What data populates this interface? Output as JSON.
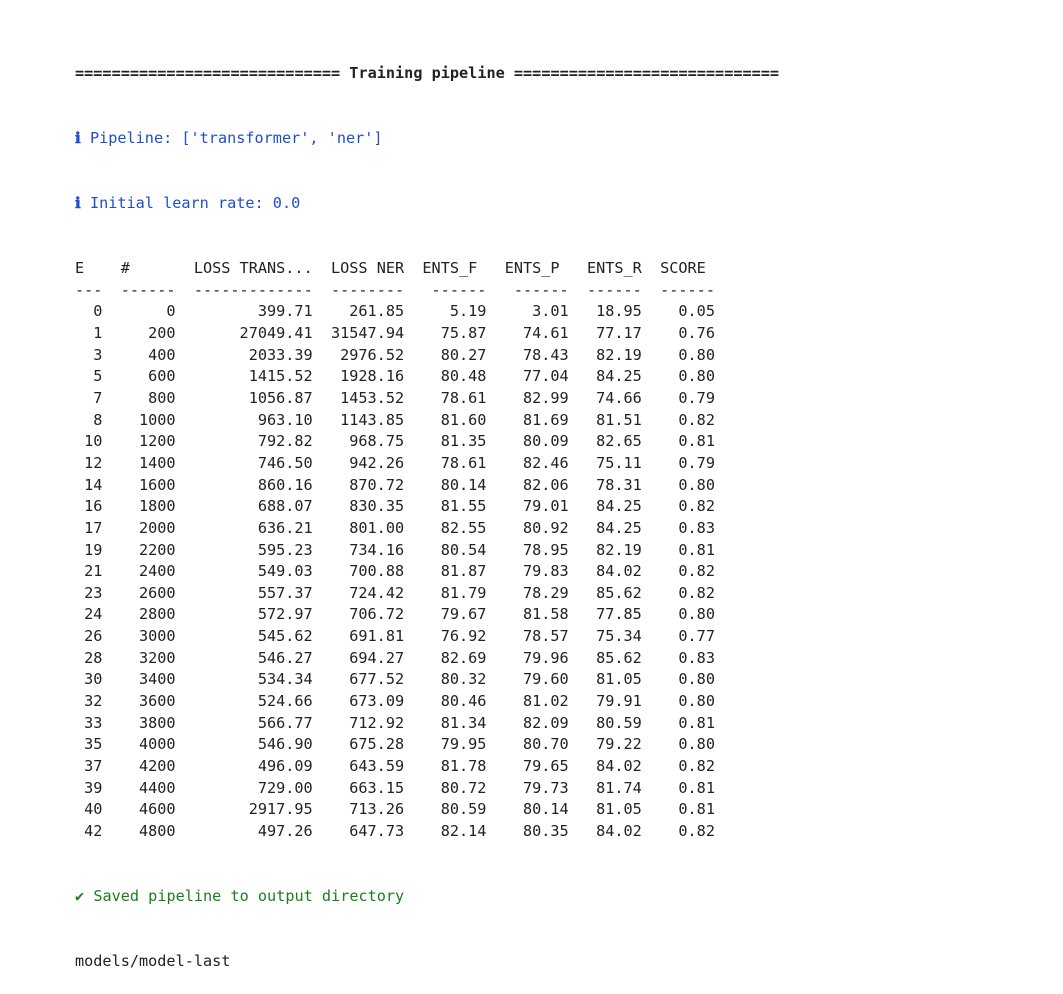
{
  "output": {
    "banner": "============================= Training pipeline =============================",
    "info_icon": "ℹ",
    "pipeline_line": "Pipeline: ['transformer', 'ner']",
    "learn_rate_line": "Initial learn rate: 0.0",
    "success_icon": "✔",
    "saved_line": "Saved pipeline to output directory",
    "path_line": "models/model-last"
  },
  "table": {
    "headers": [
      "E",
      "#",
      "LOSS TRANS...",
      "LOSS NER",
      "ENTS_F",
      "ENTS_P",
      "ENTS_R",
      "SCORE"
    ],
    "separators": [
      "---",
      "------",
      "-------------",
      "--------",
      "------",
      "------",
      "------",
      "------"
    ],
    "rows": [
      [
        "0",
        "0",
        "399.71",
        "261.85",
        "5.19",
        "3.01",
        "18.95",
        "0.05"
      ],
      [
        "1",
        "200",
        "27049.41",
        "31547.94",
        "75.87",
        "74.61",
        "77.17",
        "0.76"
      ],
      [
        "3",
        "400",
        "2033.39",
        "2976.52",
        "80.27",
        "78.43",
        "82.19",
        "0.80"
      ],
      [
        "5",
        "600",
        "1415.52",
        "1928.16",
        "80.48",
        "77.04",
        "84.25",
        "0.80"
      ],
      [
        "7",
        "800",
        "1056.87",
        "1453.52",
        "78.61",
        "82.99",
        "74.66",
        "0.79"
      ],
      [
        "8",
        "1000",
        "963.10",
        "1143.85",
        "81.60",
        "81.69",
        "81.51",
        "0.82"
      ],
      [
        "10",
        "1200",
        "792.82",
        "968.75",
        "81.35",
        "80.09",
        "82.65",
        "0.81"
      ],
      [
        "12",
        "1400",
        "746.50",
        "942.26",
        "78.61",
        "82.46",
        "75.11",
        "0.79"
      ],
      [
        "14",
        "1600",
        "860.16",
        "870.72",
        "80.14",
        "82.06",
        "78.31",
        "0.80"
      ],
      [
        "16",
        "1800",
        "688.07",
        "830.35",
        "81.55",
        "79.01",
        "84.25",
        "0.82"
      ],
      [
        "17",
        "2000",
        "636.21",
        "801.00",
        "82.55",
        "80.92",
        "84.25",
        "0.83"
      ],
      [
        "19",
        "2200",
        "595.23",
        "734.16",
        "80.54",
        "78.95",
        "82.19",
        "0.81"
      ],
      [
        "21",
        "2400",
        "549.03",
        "700.88",
        "81.87",
        "79.83",
        "84.02",
        "0.82"
      ],
      [
        "23",
        "2600",
        "557.37",
        "724.42",
        "81.79",
        "78.29",
        "85.62",
        "0.82"
      ],
      [
        "24",
        "2800",
        "572.97",
        "706.72",
        "79.67",
        "81.58",
        "77.85",
        "0.80"
      ],
      [
        "26",
        "3000",
        "545.62",
        "691.81",
        "76.92",
        "78.57",
        "75.34",
        "0.77"
      ],
      [
        "28",
        "3200",
        "546.27",
        "694.27",
        "82.69",
        "79.96",
        "85.62",
        "0.83"
      ],
      [
        "30",
        "3400",
        "534.34",
        "677.52",
        "80.32",
        "79.60",
        "81.05",
        "0.80"
      ],
      [
        "32",
        "3600",
        "524.66",
        "673.09",
        "80.46",
        "81.02",
        "79.91",
        "0.80"
      ],
      [
        "33",
        "3800",
        "566.77",
        "712.92",
        "81.34",
        "82.09",
        "80.59",
        "0.81"
      ],
      [
        "35",
        "4000",
        "546.90",
        "675.28",
        "79.95",
        "80.70",
        "79.22",
        "0.80"
      ],
      [
        "37",
        "4200",
        "496.09",
        "643.59",
        "81.78",
        "79.65",
        "84.02",
        "0.82"
      ],
      [
        "39",
        "4400",
        "729.00",
        "663.15",
        "80.72",
        "79.73",
        "81.74",
        "0.81"
      ],
      [
        "40",
        "4600",
        "2917.95",
        "713.26",
        "80.59",
        "80.14",
        "81.05",
        "0.81"
      ],
      [
        "42",
        "4800",
        "497.26",
        "647.73",
        "82.14",
        "80.35",
        "84.02",
        "0.82"
      ]
    ]
  },
  "colors": {
    "text": "#222222",
    "info": "#1f4fc4",
    "success": "#1a7f1a",
    "background": "#ffffff"
  }
}
